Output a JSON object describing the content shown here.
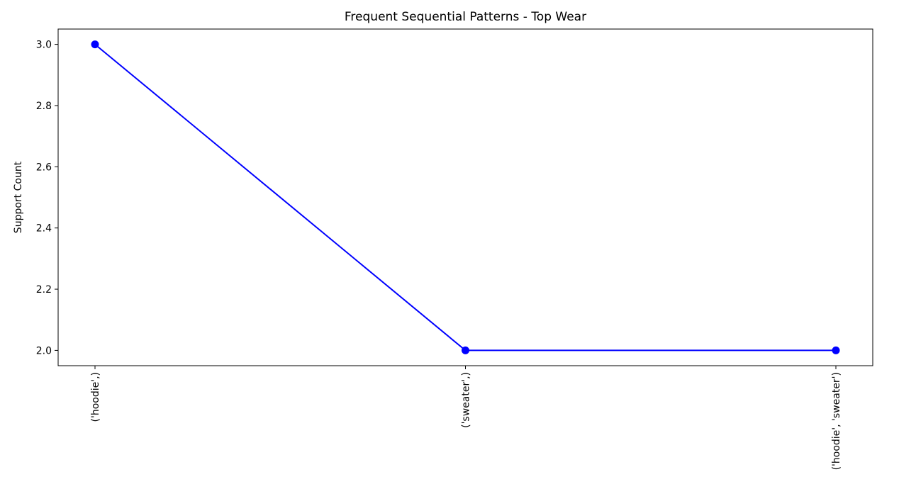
{
  "chart_data": {
    "type": "line",
    "title": "Frequent Sequential Patterns - Top Wear",
    "xlabel": "",
    "ylabel": "Support Count",
    "categories": [
      "('hoodie',)",
      "('sweater',)",
      "('hoodie', 'sweater')"
    ],
    "series": [
      {
        "values": [
          3,
          2,
          2
        ],
        "color": "#0000ff",
        "marker": "circle"
      }
    ],
    "yticks": [
      "2.0",
      "2.2",
      "2.4",
      "2.6",
      "2.8",
      "3.0"
    ],
    "ylim": [
      1.95,
      3.05
    ],
    "grid": false,
    "legend": "none"
  }
}
